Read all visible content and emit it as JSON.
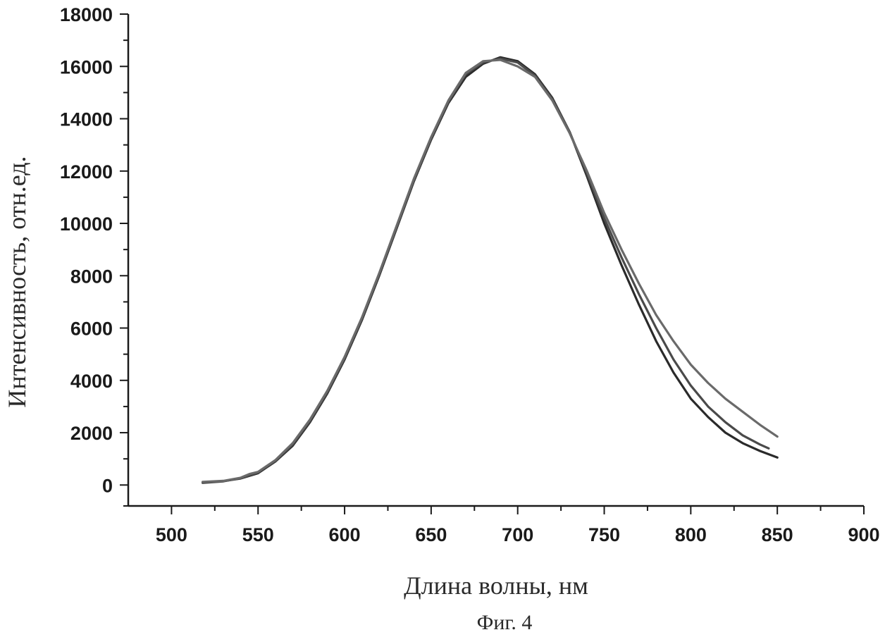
{
  "chart_data": {
    "type": "line",
    "title": "",
    "xlabel": "Длина волны, нм",
    "ylabel": "Интенсивность, отн.ед.",
    "caption": "Фиг. 4",
    "xlim": [
      475,
      900
    ],
    "ylim": [
      -800,
      18000
    ],
    "xticks": [
      500,
      550,
      600,
      650,
      700,
      750,
      800,
      850,
      900
    ],
    "yticks": [
      0,
      2000,
      4000,
      6000,
      8000,
      10000,
      12000,
      14000,
      16000,
      18000
    ],
    "grid": false,
    "legend": "none",
    "series": [
      {
        "color": "#2a2a2a",
        "x": [
          518,
          530,
          540,
          550,
          560,
          570,
          580,
          590,
          600,
          610,
          620,
          630,
          640,
          650,
          660,
          670,
          680,
          690,
          700,
          710,
          720,
          730,
          740,
          750,
          760,
          770,
          780,
          790,
          800,
          810,
          820,
          830,
          840,
          850
        ],
        "y": [
          100,
          150,
          250,
          450,
          900,
          1500,
          2400,
          3500,
          4800,
          6300,
          8000,
          9800,
          11600,
          13200,
          14600,
          15600,
          16100,
          16350,
          16200,
          15700,
          14800,
          13500,
          11800,
          10000,
          8400,
          6900,
          5500,
          4300,
          3300,
          2600,
          2000,
          1600,
          1300,
          1050
        ]
      },
      {
        "color": "#4a4a4a",
        "x": [
          518,
          530,
          540,
          550,
          560,
          570,
          580,
          590,
          600,
          610,
          620,
          630,
          640,
          650,
          660,
          670,
          680,
          690,
          700,
          710,
          720,
          730,
          740,
          750,
          760,
          770,
          780,
          790,
          800,
          810,
          820,
          830,
          840,
          845
        ],
        "y": [
          80,
          140,
          260,
          480,
          920,
          1550,
          2450,
          3550,
          4850,
          6350,
          8050,
          9850,
          11650,
          13250,
          14650,
          15700,
          16150,
          16300,
          16150,
          15650,
          14750,
          13500,
          11900,
          10200,
          8700,
          7300,
          6000,
          4800,
          3800,
          3000,
          2400,
          1900,
          1550,
          1400
        ]
      },
      {
        "color": "#6a6a6a",
        "x": [
          518,
          530,
          540,
          545,
          550,
          560,
          570,
          580,
          590,
          600,
          610,
          620,
          630,
          640,
          650,
          660,
          670,
          680,
          690,
          700,
          710,
          720,
          730,
          740,
          750,
          760,
          770,
          780,
          790,
          800,
          810,
          820,
          830,
          840,
          850
        ],
        "y": [
          120,
          160,
          280,
          420,
          500,
          950,
          1600,
          2500,
          3600,
          4900,
          6400,
          8100,
          9900,
          11700,
          13300,
          14700,
          15750,
          16200,
          16250,
          16000,
          15600,
          14700,
          13450,
          12000,
          10400,
          9000,
          7700,
          6500,
          5500,
          4600,
          3900,
          3300,
          2800,
          2300,
          1850
        ]
      }
    ]
  }
}
